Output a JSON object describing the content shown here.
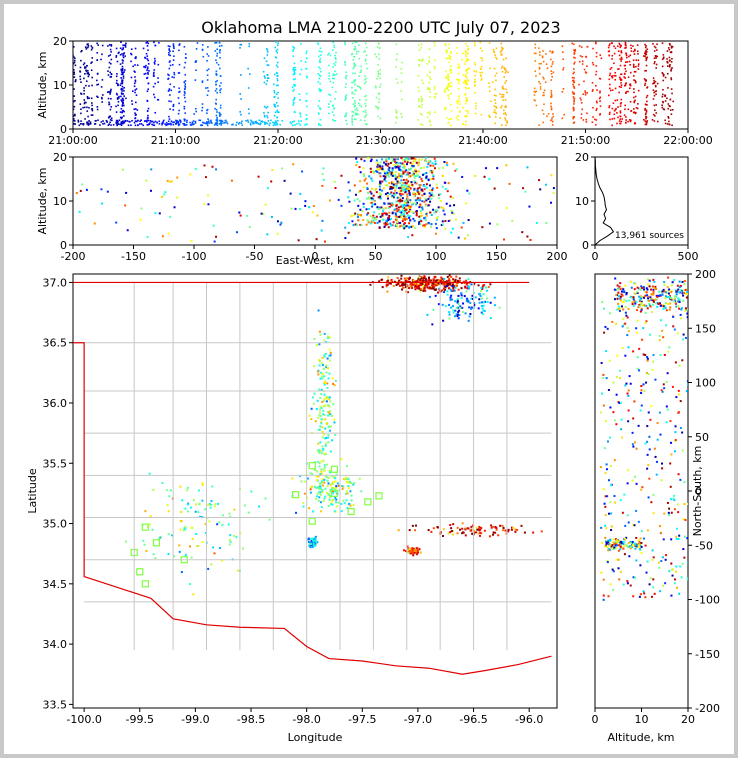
{
  "title": "Oklahoma LMA 2100-2200 UTC July 07, 2023",
  "chart_data": [
    {
      "panel": "time-height",
      "type": "scatter",
      "ylabel": "Altitude, km",
      "xlim": [
        "21:00:00",
        "22:00:00"
      ],
      "ylim": [
        0,
        20
      ],
      "x_ticks": [
        "21:00:00",
        "21:10:00",
        "21:20:00",
        "21:30:00",
        "21:40:00",
        "21:50:00",
        "22:00:00"
      ],
      "y_ticks": [
        "0",
        "10",
        "20"
      ]
    },
    {
      "panel": "east-west-height",
      "type": "scatter",
      "xlabel": "East-West, km",
      "ylabel": "Altitude, km",
      "xlim": [
        -200,
        200
      ],
      "ylim": [
        0,
        20
      ],
      "x_ticks": [
        "-200",
        "-150",
        "-100",
        "-50",
        "0",
        "50",
        "100",
        "150",
        "200"
      ],
      "y_ticks": [
        "0",
        "10",
        "20"
      ]
    },
    {
      "panel": "altitude-histogram",
      "type": "line",
      "xlim": [
        0,
        500
      ],
      "ylim": [
        0,
        20
      ],
      "x_ticks": [
        "0",
        "500"
      ],
      "y_ticks": [
        "0",
        "10",
        "20"
      ],
      "annotation": "13,961 sources"
    },
    {
      "panel": "plan-view",
      "type": "scatter",
      "xlabel": "Longitude",
      "ylabel": "Latitude",
      "xlim": [
        -100.1,
        -95.75
      ],
      "ylim": [
        33.47,
        37.07
      ],
      "x_ticks": [
        "-100.0",
        "-99.5",
        "-99.0",
        "-98.5",
        "-98.0",
        "-97.5",
        "-97.0",
        "-96.5",
        "-96.0"
      ],
      "y_ticks": [
        "33.5",
        "34.0",
        "34.5",
        "35.0",
        "35.5",
        "36.0",
        "36.5",
        "37.0"
      ]
    },
    {
      "panel": "north-south-height",
      "type": "scatter",
      "xlabel": "Altitude, km",
      "ylabel": "North-South, km",
      "xlim": [
        0,
        20
      ],
      "ylim": [
        -200,
        200
      ],
      "x_ticks": [
        "0",
        "10",
        "20"
      ],
      "y_ticks": [
        "-200",
        "-150",
        "-100",
        "-50",
        "0",
        "50",
        "100",
        "150",
        "200"
      ]
    }
  ],
  "colors": {
    "state_border": "#e00000",
    "county_lines": "#c8c8c8",
    "station_marker": "#80ff40"
  }
}
